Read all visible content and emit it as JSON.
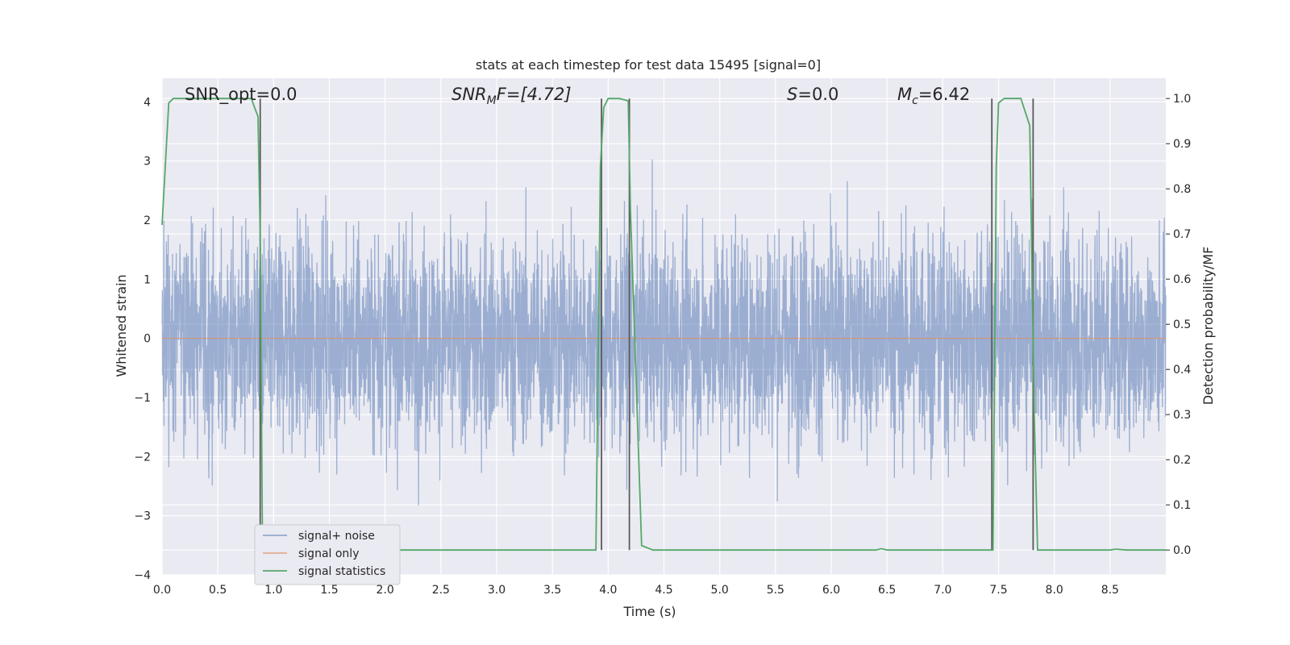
{
  "chart_data": {
    "type": "line",
    "title": "stats at each timestep for test data 15495 [signal=0]",
    "xlabel": "Time (s)",
    "ylabel": "Whitened strain",
    "y2label": "Detection probability/MF",
    "xlim": [
      0.0,
      9.0
    ],
    "ylim": [
      -4.0,
      4.4
    ],
    "y2lim": [
      -0.055,
      1.045
    ],
    "xticks": [
      "0.0",
      "0.5",
      "1.0",
      "1.5",
      "2.0",
      "2.5",
      "3.0",
      "3.5",
      "4.0",
      "4.5",
      "5.0",
      "5.5",
      "6.0",
      "6.5",
      "7.0",
      "7.5",
      "8.0",
      "8.5"
    ],
    "yticks": [
      "4",
      "3",
      "2",
      "1",
      "0",
      "−1",
      "−2",
      "−3",
      "−4"
    ],
    "y2ticks": [
      "1.0",
      "0.9",
      "0.8",
      "0.7",
      "0.6",
      "0.5",
      "0.4",
      "0.3",
      "0.2",
      "0.1",
      "0.0"
    ],
    "grid": true,
    "legend_position": "lower-left",
    "colors": {
      "noise": "#4c72b0",
      "signal": "#dd8452",
      "stats": "#55a868",
      "vline": "#5a5a5a",
      "background": "#eaeaf2"
    },
    "annotations": {
      "snr_opt": "SNR_opt=0.0",
      "snr_mf_base": "SNR",
      "snr_mf_sub": "M",
      "snr_mf_rest": "F=[4.72]",
      "s_base": "S",
      "s_rest": "=0.0",
      "mc_base": "M",
      "mc_sub": "c",
      "mc_rest": "=6.42"
    },
    "series": [
      {
        "name": "signal+ noise",
        "envelope": {
          "lower": -1.4,
          "upper": 1.7
        },
        "sample_rate_hz": 512,
        "note_points": "dense whitened noise; approximately Gaussian with std ~1"
      },
      {
        "name": "signal only",
        "x": [
          0.0,
          9.0
        ],
        "values": [
          0.0,
          0.0
        ]
      },
      {
        "name": "signal statistics",
        "axis": "right",
        "x": [
          0.0,
          0.06,
          0.1,
          0.2,
          0.4,
          0.6,
          0.8,
          0.83,
          0.86,
          0.88,
          0.9,
          0.93,
          1.0,
          3.89,
          3.93,
          3.96,
          4.0,
          4.1,
          4.18,
          4.2,
          4.3,
          4.4,
          6.4,
          6.45,
          6.5,
          7.45,
          7.48,
          7.5,
          7.55,
          7.7,
          7.78,
          7.82,
          7.85,
          8.0,
          8.5,
          8.55,
          8.65,
          9.0
        ],
        "values": [
          0.72,
          0.99,
          1.0,
          1.0,
          1.0,
          1.0,
          1.0,
          0.98,
          0.96,
          0.7,
          0.02,
          0.0,
          0.0,
          0.0,
          0.85,
          0.98,
          1.0,
          1.0,
          0.995,
          0.75,
          0.01,
          0.0,
          0.0,
          0.003,
          0.0,
          0.0,
          0.85,
          0.99,
          1.0,
          1.0,
          0.94,
          0.3,
          0.0,
          0.0,
          0.0,
          0.002,
          0.0,
          0.0
        ]
      }
    ],
    "vertical_lines": [
      0.88,
      3.94,
      4.19,
      7.44,
      7.81
    ],
    "legend": [
      "signal+ noise",
      "signal only",
      "signal statistics"
    ]
  }
}
